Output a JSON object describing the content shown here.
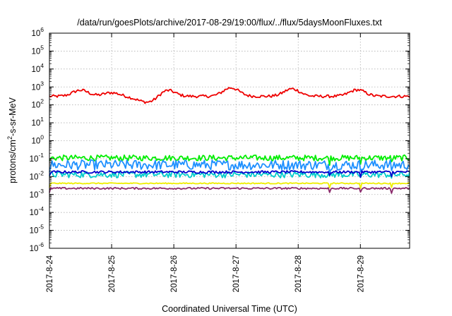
{
  "chart_data": {
    "type": "line",
    "title": "/data/run/goesPlots/archive/2017-08-29/19:00/flux/../flux/5daysMoonFluxes.txt",
    "xlabel": "Coordinated Universal Time (UTC)",
    "ylabel_parts": [
      "protons/cm",
      "2",
      "-s-sr-MeV"
    ],
    "y_scale": "log",
    "ylim_exp": [
      -6,
      6
    ],
    "y_tick_base": "10",
    "y_tick_exponents": [
      "-6",
      "-5",
      "-4",
      "-3",
      "-2",
      "-1",
      "0",
      "1",
      "2",
      "3",
      "4",
      "5",
      "6"
    ],
    "x_range_days": [
      "2017-08-24",
      "2017-08-29 19:00"
    ],
    "x_ticks": [
      "2017-8-24",
      "2017-8-25",
      "2017-8-26",
      "2017-8-27",
      "2017-8-28",
      "2017-8-29"
    ],
    "grid": true,
    "legend": "none",
    "series": [
      {
        "color": "#ee0000",
        "base": 300,
        "jitter": 0.08,
        "bumps": [
          [
            0.5,
            2.2
          ],
          [
            1.0,
            1.6
          ],
          [
            1.88,
            2.6
          ],
          [
            2.92,
            3.0
          ],
          [
            3.9,
            2.6
          ],
          [
            4.95,
            2.3
          ]
        ],
        "dips": [
          [
            1.6,
            0.45
          ]
        ]
      },
      {
        "color": "#00ee00",
        "base": 0.11,
        "jitter": 0.16,
        "bumps": [],
        "dips": []
      },
      {
        "color": "#1e90ff",
        "base": 0.045,
        "jitter": 0.28,
        "bumps": [],
        "dips": []
      },
      {
        "color": "#00cccc",
        "base": 0.013,
        "jitter": 0.18,
        "bumps": [],
        "dips": []
      },
      {
        "color": "#0000cc",
        "base": 0.018,
        "jitter": 0.07,
        "bumps": [],
        "dips": []
      },
      {
        "color": "#eeee00",
        "base": 0.0042,
        "jitter": 0.03,
        "bumps": [],
        "dips": []
      },
      {
        "color": "#8b2a6b",
        "base": 0.0022,
        "jitter": 0.05,
        "bumps": [],
        "dips": []
      }
    ]
  }
}
